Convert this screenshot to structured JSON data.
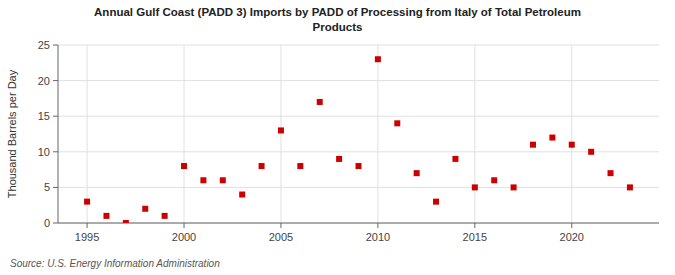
{
  "chart_data": {
    "type": "scatter",
    "title": "Annual Gulf Coast (PADD 3) Imports by PADD of Processing from Italy of Total Petroleum\nProducts",
    "y_label": "Thousand Barrels per Day",
    "annotations": [
      "Source: U.S. Energy Information Administration"
    ],
    "x": [
      1995,
      1996,
      1997,
      1998,
      1999,
      2000,
      2001,
      2002,
      2003,
      2004,
      2005,
      2006,
      2007,
      2008,
      2009,
      2010,
      2011,
      2012,
      2013,
      2014,
      2015,
      2016,
      2017,
      2018,
      2019,
      2020,
      2021,
      2022,
      2023
    ],
    "values": [
      3,
      1,
      0,
      2,
      1,
      8,
      6,
      6,
      4,
      8,
      13,
      8,
      17,
      9,
      8,
      23,
      14,
      7,
      3,
      9,
      5,
      6,
      5,
      11,
      12,
      11,
      10,
      7,
      5
    ],
    "color": "#cc0000",
    "marker": "square",
    "xlim": [
      1993.5,
      2024.5
    ],
    "ylim": [
      0,
      25
    ],
    "xticks": [
      1995,
      2000,
      2005,
      2010,
      2015,
      2020
    ],
    "yticks": [
      0,
      5,
      10,
      15,
      20,
      25
    ],
    "grid": true
  }
}
